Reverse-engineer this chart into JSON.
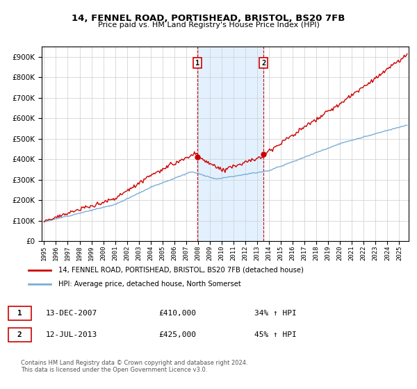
{
  "title": "14, FENNEL ROAD, PORTISHEAD, BRISTOL, BS20 7FB",
  "subtitle": "Price paid vs. HM Land Registry's House Price Index (HPI)",
  "property_label": "14, FENNEL ROAD, PORTISHEAD, BRISTOL, BS20 7FB (detached house)",
  "hpi_label": "HPI: Average price, detached house, North Somerset",
  "property_color": "#cc0000",
  "hpi_color": "#7aaed6",
  "shade_color": "#ddeeff",
  "sale1_date_label": "13-DEC-2007",
  "sale1_price": 410000,
  "sale1_pct": "34%",
  "sale1_year": 2007.96,
  "sale2_date_label": "12-JUL-2013",
  "sale2_price": 425000,
  "sale2_pct": "45%",
  "sale2_year": 2013.54,
  "footnote": "Contains HM Land Registry data © Crown copyright and database right 2024.\nThis data is licensed under the Open Government Licence v3.0.",
  "ylim": [
    0,
    950000
  ],
  "yticks": [
    0,
    100000,
    200000,
    300000,
    400000,
    500000,
    600000,
    700000,
    800000,
    900000
  ],
  "xlim_start": 1994.8,
  "xlim_end": 2025.8
}
